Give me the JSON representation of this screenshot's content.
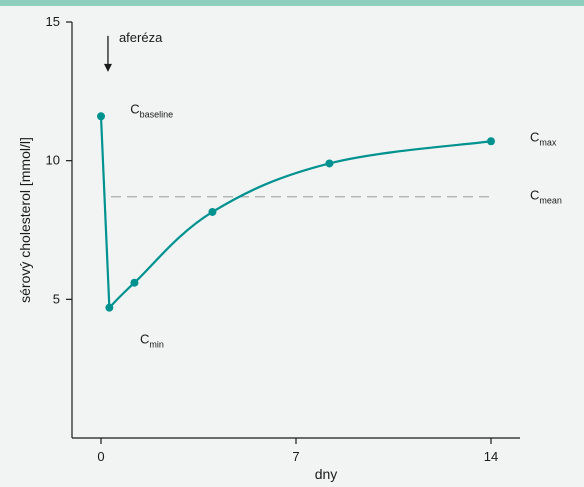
{
  "chart_data": {
    "type": "line",
    "xlabel": "dny",
    "ylabel": "sérový cholesterol [mmol/l]",
    "xlim": [
      -1,
      14.6
    ],
    "ylim": [
      0,
      15
    ],
    "x_ticks": [
      {
        "value": 0,
        "label": "0"
      },
      {
        "value": 7,
        "label": "7"
      },
      {
        "value": 14,
        "label": "14"
      }
    ],
    "y_ticks": [
      {
        "value": 5,
        "label": "5"
      },
      {
        "value": 10,
        "label": "10"
      },
      {
        "value": 15,
        "label": "15"
      }
    ],
    "grid": false,
    "series": [
      {
        "points": [
          {
            "x": 0,
            "y": 11.6
          },
          {
            "x": 0.3,
            "y": 4.7
          },
          {
            "x": 1.2,
            "y": 5.6
          },
          {
            "x": 4.0,
            "y": 8.15
          },
          {
            "x": 8.2,
            "y": 9.9
          },
          {
            "x": 14.0,
            "y": 10.7
          }
        ],
        "color": "#00928f"
      }
    ],
    "mean_line": {
      "y": 8.7,
      "color": "#aaaaaa"
    },
    "annotations": [
      {
        "name": "baseline",
        "base": "C",
        "sub": "baseline",
        "x": 1.05,
        "y": 11.7
      },
      {
        "name": "min",
        "base": "C",
        "sub": "min",
        "x": 1.4,
        "y": 3.4
      },
      {
        "name": "max",
        "base": "C",
        "sub": "max",
        "x": 15.4,
        "y": 10.7
      },
      {
        "name": "mean",
        "base": "C",
        "sub": "mean",
        "x": 15.4,
        "y": 8.6
      }
    ],
    "arrow": {
      "label": "aferéza",
      "x": 0.25,
      "y_from": 14.5,
      "y_to": 13.2
    }
  }
}
